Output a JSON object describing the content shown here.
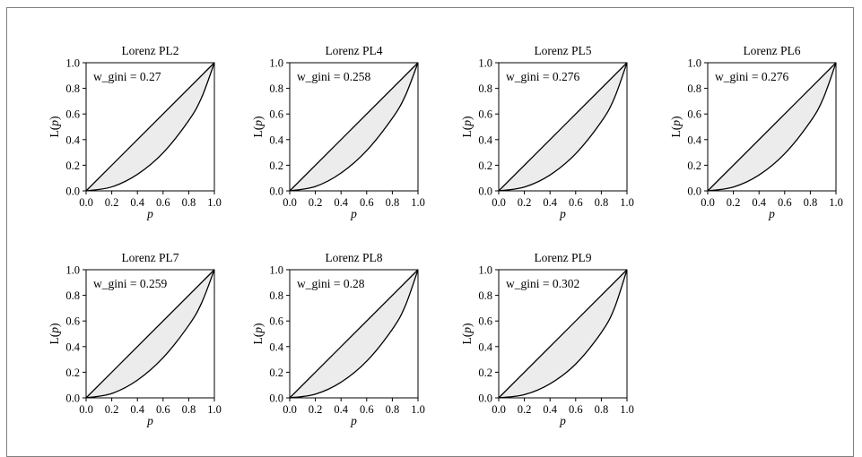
{
  "chart_data": [
    {
      "type": "line",
      "title": "Lorenz PL2",
      "xlabel": "p",
      "ylabel": "L(p)",
      "xlim": [
        0,
        1
      ],
      "ylim": [
        0,
        1
      ],
      "x_ticks": [
        "0.0",
        "0.2",
        "0.4",
        "0.6",
        "0.8",
        "1.0"
      ],
      "y_ticks": [
        "0.0",
        "0.2",
        "0.4",
        "0.6",
        "0.8",
        "1.0"
      ],
      "annotation": "w_gini = 0.27",
      "series": [
        {
          "values": [
            [
              0,
              0
            ],
            [
              0.2,
              0.031
            ],
            [
              0.4,
              0.129
            ],
            [
              0.6,
              0.297
            ],
            [
              0.8,
              0.549
            ],
            [
              0.9,
              0.727
            ],
            [
              1.0,
              1.0
            ]
          ]
        },
        {
          "values": [
            [
              0,
              0
            ],
            [
              1,
              1
            ]
          ]
        }
      ]
    },
    {
      "type": "line",
      "title": "Lorenz PL4",
      "xlabel": "p",
      "ylabel": "L(p)",
      "xlim": [
        0,
        1
      ],
      "ylim": [
        0,
        1
      ],
      "x_ticks": [
        "0.0",
        "0.2",
        "0.4",
        "0.6",
        "0.8",
        "1.0"
      ],
      "y_ticks": [
        "0.0",
        "0.2",
        "0.4",
        "0.6",
        "0.8",
        "1.0"
      ],
      "annotation": "w_gini = 0.258",
      "series": [
        {
          "values": [
            [
              0,
              0
            ],
            [
              0.2,
              0.034
            ],
            [
              0.4,
              0.139
            ],
            [
              0.6,
              0.314
            ],
            [
              0.8,
              0.567
            ],
            [
              0.9,
              0.74
            ],
            [
              1.0,
              1.0
            ]
          ]
        },
        {
          "values": [
            [
              0,
              0
            ],
            [
              1,
              1
            ]
          ]
        }
      ]
    },
    {
      "type": "line",
      "title": "Lorenz PL5",
      "xlabel": "p",
      "ylabel": "L(p)",
      "xlim": [
        0,
        1
      ],
      "ylim": [
        0,
        1
      ],
      "x_ticks": [
        "0.0",
        "0.2",
        "0.4",
        "0.6",
        "0.8",
        "1.0"
      ],
      "y_ticks": [
        "0.0",
        "0.2",
        "0.4",
        "0.6",
        "0.8",
        "1.0"
      ],
      "annotation": "w_gini = 0.276",
      "series": [
        {
          "values": [
            [
              0,
              0
            ],
            [
              0.2,
              0.03
            ],
            [
              0.4,
              0.124
            ],
            [
              0.6,
              0.29
            ],
            [
              0.8,
              0.54
            ],
            [
              0.9,
              0.72
            ],
            [
              1.0,
              1.0
            ]
          ]
        },
        {
          "values": [
            [
              0,
              0
            ],
            [
              1,
              1
            ]
          ]
        }
      ]
    },
    {
      "type": "line",
      "title": "Lorenz PL6",
      "xlabel": "p",
      "ylabel": "L(p)",
      "xlim": [
        0,
        1
      ],
      "ylim": [
        0,
        1
      ],
      "x_ticks": [
        "0.0",
        "0.2",
        "0.4",
        "0.6",
        "0.8",
        "1.0"
      ],
      "y_ticks": [
        "0.0",
        "0.2",
        "0.4",
        "0.6",
        "0.8",
        "1.0"
      ],
      "annotation": "w_gini = 0.276",
      "series": [
        {
          "values": [
            [
              0,
              0
            ],
            [
              0.2,
              0.03
            ],
            [
              0.4,
              0.124
            ],
            [
              0.6,
              0.29
            ],
            [
              0.8,
              0.54
            ],
            [
              0.9,
              0.72
            ],
            [
              1.0,
              1.0
            ]
          ]
        },
        {
          "values": [
            [
              0,
              0
            ],
            [
              1,
              1
            ]
          ]
        }
      ]
    },
    {
      "type": "line",
      "title": "Lorenz PL7",
      "xlabel": "p",
      "ylabel": "L(p)",
      "xlim": [
        0,
        1
      ],
      "ylim": [
        0,
        1
      ],
      "x_ticks": [
        "0.0",
        "0.2",
        "0.4",
        "0.6",
        "0.8",
        "1.0"
      ],
      "y_ticks": [
        "0.0",
        "0.2",
        "0.4",
        "0.6",
        "0.8",
        "1.0"
      ],
      "annotation": "w_gini = 0.259",
      "series": [
        {
          "values": [
            [
              0,
              0
            ],
            [
              0.2,
              0.034
            ],
            [
              0.4,
              0.138
            ],
            [
              0.6,
              0.313
            ],
            [
              0.8,
              0.566
            ],
            [
              0.9,
              0.74
            ],
            [
              1.0,
              1.0
            ]
          ]
        },
        {
          "values": [
            [
              0,
              0
            ],
            [
              1,
              1
            ]
          ]
        }
      ]
    },
    {
      "type": "line",
      "title": "Lorenz PL8",
      "xlabel": "p",
      "ylabel": "L(p)",
      "xlim": [
        0,
        1
      ],
      "ylim": [
        0,
        1
      ],
      "x_ticks": [
        "0.0",
        "0.2",
        "0.4",
        "0.6",
        "0.8",
        "1.0"
      ],
      "y_ticks": [
        "0.0",
        "0.2",
        "0.4",
        "0.6",
        "0.8",
        "1.0"
      ],
      "annotation": "w_gini = 0.28",
      "series": [
        {
          "values": [
            [
              0,
              0
            ],
            [
              0.2,
              0.029
            ],
            [
              0.4,
              0.122
            ],
            [
              0.6,
              0.286
            ],
            [
              0.8,
              0.535
            ],
            [
              0.9,
              0.716
            ],
            [
              1.0,
              1.0
            ]
          ]
        },
        {
          "values": [
            [
              0,
              0
            ],
            [
              1,
              1
            ]
          ]
        }
      ]
    },
    {
      "type": "line",
      "title": "Lorenz PL9",
      "xlabel": "p",
      "ylabel": "L(p)",
      "xlim": [
        0,
        1
      ],
      "ylim": [
        0,
        1
      ],
      "x_ticks": [
        "0.0",
        "0.2",
        "0.4",
        "0.6",
        "0.8",
        "1.0"
      ],
      "y_ticks": [
        "0.0",
        "0.2",
        "0.4",
        "0.6",
        "0.8",
        "1.0"
      ],
      "annotation": "w_gini = 0.302",
      "series": [
        {
          "values": [
            [
              0,
              0
            ],
            [
              0.2,
              0.025
            ],
            [
              0.4,
              0.11
            ],
            [
              0.6,
              0.264
            ],
            [
              0.8,
              0.51
            ],
            [
              0.9,
              0.695
            ],
            [
              1.0,
              1.0
            ]
          ]
        },
        {
          "values": [
            [
              0,
              0
            ],
            [
              1,
              1
            ]
          ]
        }
      ]
    }
  ],
  "colors": {
    "curve": "#000000",
    "fill": "#ececec",
    "axis": "#000000",
    "frame": "#808080"
  }
}
